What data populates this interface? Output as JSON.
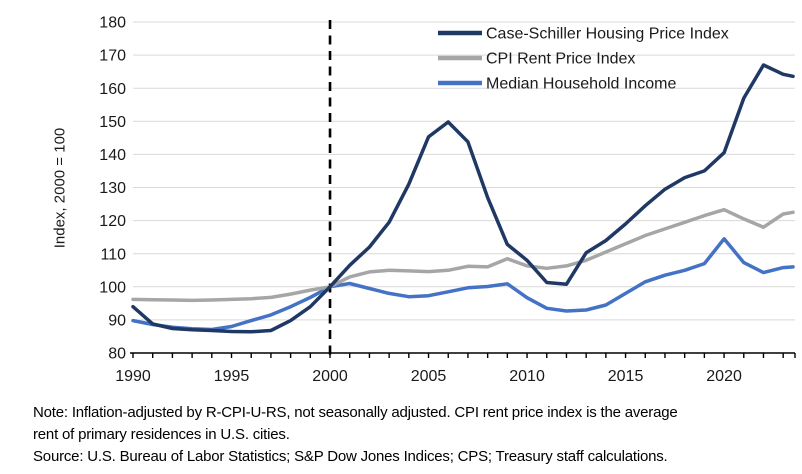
{
  "figure": {
    "note_lines": [
      "Note: Inflation-adjusted by R-CPI-U-RS, not seasonally adjusted. CPI rent price index is the average",
      "rent of primary residences in U.S. cities.",
      "Source: U.S. Bureau of Labor Statistics; S&P Dow Jones Indices; CPS; Treasury staff calculations."
    ]
  },
  "colors": {
    "background": "#ffffff",
    "gridline": "#d9d9d9",
    "axis": "#000000",
    "tick_text": "#1a1a1a",
    "reference_line": "#000000"
  },
  "chart_data": {
    "type": "line",
    "title": "",
    "xlabel": "",
    "ylabel": "Index, 2000 = 100",
    "ylim": [
      80,
      180
    ],
    "ytick_step": 10,
    "xlim": [
      1990,
      2023.6
    ],
    "xtick_minor_step": 1,
    "xticks_labeled": [
      1990,
      1995,
      2000,
      2005,
      2010,
      2015,
      2020
    ],
    "grid": "horizontal",
    "legend_position": "top-right-inside",
    "annotations": [
      {
        "type": "vline",
        "x": 2000,
        "style": "dashed",
        "color": "#000000"
      }
    ],
    "x": [
      1990,
      1991,
      1992,
      1993,
      1994,
      1995,
      1996,
      1997,
      1998,
      1999,
      2000,
      2001,
      2002,
      2003,
      2004,
      2005,
      2006,
      2007,
      2008,
      2009,
      2010,
      2011,
      2012,
      2013,
      2014,
      2015,
      2016,
      2017,
      2018,
      2019,
      2020,
      2021,
      2022,
      2023,
      2023.5
    ],
    "series": [
      {
        "id": "case-schiller-housing-price-index",
        "name": "Case-Schiller Housing Price Index",
        "color": "#1f3864",
        "values": [
          94.0,
          88.8,
          87.4,
          87.0,
          86.8,
          86.5,
          86.4,
          86.8,
          89.8,
          94.0,
          100.0,
          106.5,
          112.0,
          119.5,
          131.0,
          145.3,
          149.8,
          143.8,
          127.0,
          112.8,
          108.0,
          101.3,
          100.8,
          110.3,
          114.0,
          119.0,
          124.5,
          129.5,
          133.0,
          135.0,
          140.5,
          157.0,
          167.0,
          164.2,
          163.6
        ]
      },
      {
        "id": "cpi-rent-price-index",
        "name": "CPI Rent Price Index",
        "color": "#a6a6a6",
        "values": [
          96.2,
          96.1,
          96.0,
          95.9,
          96.0,
          96.2,
          96.4,
          96.8,
          97.8,
          99.0,
          100.0,
          103.0,
          104.5,
          105.0,
          104.8,
          104.6,
          105.0,
          106.2,
          106.0,
          108.5,
          106.3,
          105.6,
          106.3,
          108.0,
          110.5,
          113.0,
          115.5,
          117.5,
          119.5,
          121.5,
          123.3,
          120.5,
          118.0,
          122.0,
          122.5
        ]
      },
      {
        "id": "median-household-income",
        "name": "Median Household Income",
        "color": "#4472c4",
        "values": [
          89.8,
          88.6,
          87.8,
          87.3,
          87.1,
          88.0,
          89.8,
          91.5,
          94.0,
          96.8,
          100.0,
          101.0,
          99.5,
          98.0,
          97.0,
          97.3,
          98.5,
          99.7,
          100.1,
          100.9,
          96.7,
          93.5,
          92.7,
          93.0,
          94.5,
          98.0,
          101.5,
          103.5,
          105.0,
          107.0,
          114.5,
          107.3,
          104.3,
          105.8,
          106.0
        ]
      }
    ]
  }
}
